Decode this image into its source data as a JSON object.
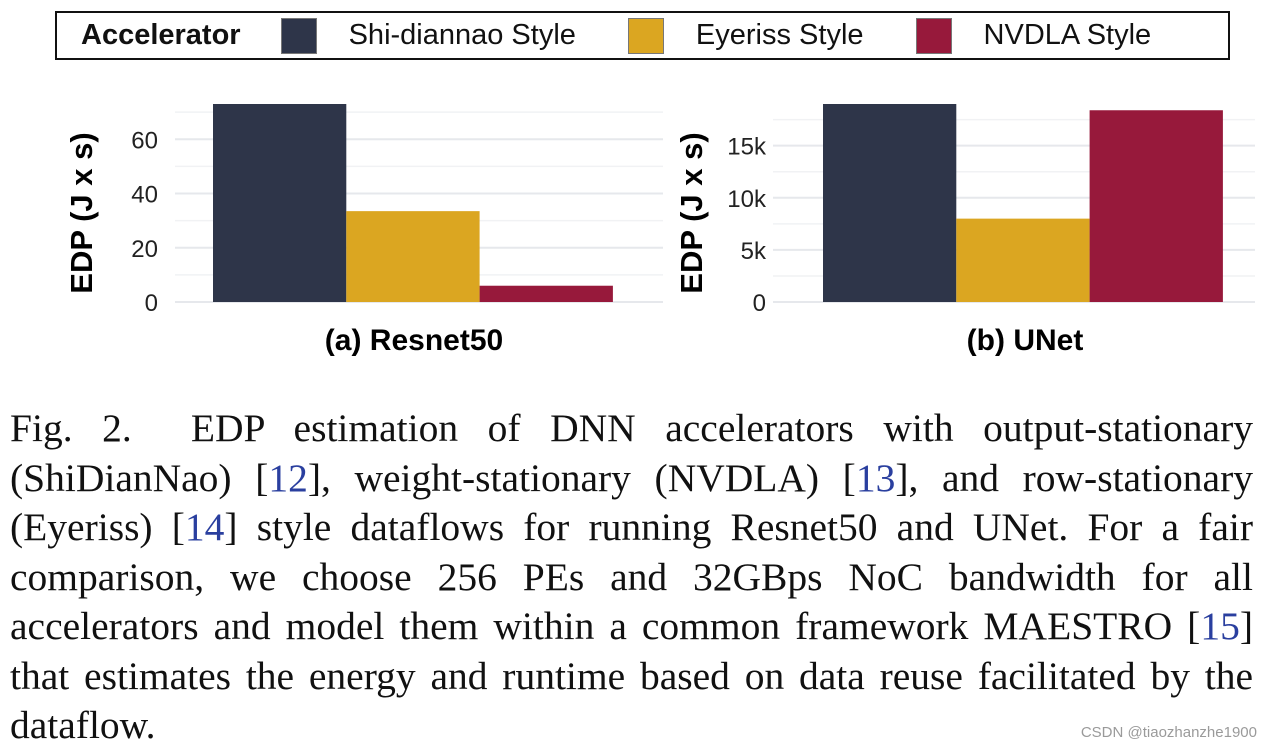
{
  "legend": {
    "title": "Accelerator",
    "items": [
      {
        "label": "Shi-diannao Style",
        "color": "#2e3549"
      },
      {
        "label": "Eyeriss Style",
        "color": "#dba621"
      },
      {
        "label": "NVDLA Style",
        "color": "#97193b"
      }
    ]
  },
  "chart_data": [
    {
      "type": "bar",
      "title": "(a) Resnet50",
      "ylabel": "EDP (J x s)",
      "xlabel": "(a) Resnet50",
      "categories": [
        "Shi-diannao Style",
        "Eyeriss Style",
        "NVDLA Style"
      ],
      "values": [
        73,
        33.5,
        6
      ],
      "colors": [
        "#2e3549",
        "#dba621",
        "#97193b"
      ],
      "ylim": [
        0,
        73
      ],
      "yticks": [
        0,
        20,
        40,
        60
      ],
      "yticklabels": [
        "0",
        "20",
        "40",
        "60"
      ],
      "grid": true
    },
    {
      "type": "bar",
      "title": "(b) UNet",
      "ylabel": "EDP (J x s)",
      "xlabel": "(b) UNet",
      "categories": [
        "Shi-diannao Style",
        "Eyeriss Style",
        "NVDLA Style"
      ],
      "values": [
        19000,
        8000,
        18400
      ],
      "colors": [
        "#2e3549",
        "#dba621",
        "#97193b"
      ],
      "ylim": [
        0,
        19000
      ],
      "yticks": [
        0,
        5000,
        10000,
        15000
      ],
      "yticklabels": [
        "0",
        "5k",
        "10k",
        "15k"
      ],
      "grid": true
    }
  ],
  "caption": {
    "fig_label": "Fig. 2.",
    "parts": [
      "EDP estimation of DNN accelerators with output-stationary (ShiDianNao) [",
      "], weight-stationary (NVDLA) [",
      "], and row-stationary (Eyeriss) [",
      "] style dataflows for running Resnet50 and UNet. For a fair comparison, we choose 256 PEs and 32GBps NoC bandwidth for all accelerators and model them within a common framework MAESTRO [",
      "] that estimates the energy and runtime based on data reuse facilitated by the dataflow."
    ],
    "refs": [
      "12",
      "13",
      "14",
      "15"
    ]
  },
  "watermark": "CSDN @tiaozhanzhe1900"
}
